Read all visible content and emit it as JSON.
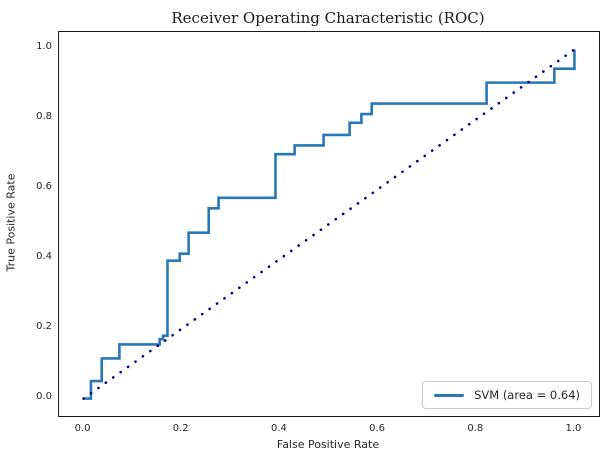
{
  "title": "Receiver Operating Characteristic (ROC)",
  "colors": {
    "roc_line": "#2878b8",
    "chance_line": "#000080",
    "spine": "#1a1a1a",
    "text": "#262626",
    "legend_border": "#cccccc"
  },
  "legend": {
    "label": "SVM (area = 0.64)"
  },
  "chart_data": {
    "type": "line",
    "title": "Receiver Operating Characteristic (ROC)",
    "xlabel": "False Positive Rate",
    "ylabel": "True Positive Rate",
    "xlim": [
      -0.05,
      1.05
    ],
    "ylim": [
      -0.05,
      1.05
    ],
    "xticks": [
      0.0,
      0.2,
      0.4,
      0.6,
      0.8,
      1.0
    ],
    "yticks": [
      0.0,
      0.2,
      0.4,
      0.6,
      0.8,
      1.0
    ],
    "grid": false,
    "auc": 0.64,
    "legend_position": "lower right",
    "series": [
      {
        "name": "SVM (area = 0.64)",
        "style": "step",
        "color": "#2878b8",
        "linewidth": 2.6,
        "x": [
          0.0,
          0.015,
          0.015,
          0.037,
          0.037,
          0.073,
          0.073,
          0.155,
          0.155,
          0.162,
          0.162,
          0.171,
          0.171,
          0.196,
          0.196,
          0.214,
          0.214,
          0.255,
          0.255,
          0.275,
          0.275,
          0.391,
          0.391,
          0.43,
          0.43,
          0.489,
          0.489,
          0.542,
          0.542,
          0.566,
          0.566,
          0.587,
          0.587,
          0.821,
          0.821,
          0.959,
          0.959,
          1.0,
          1.0
        ],
        "y": [
          0.0,
          0.0,
          0.05,
          0.05,
          0.115,
          0.115,
          0.155,
          0.155,
          0.17,
          0.17,
          0.18,
          0.18,
          0.395,
          0.395,
          0.415,
          0.415,
          0.475,
          0.475,
          0.545,
          0.545,
          0.575,
          0.575,
          0.7,
          0.7,
          0.725,
          0.725,
          0.755,
          0.755,
          0.79,
          0.79,
          0.815,
          0.815,
          0.845,
          0.845,
          0.905,
          0.905,
          0.945,
          0.945,
          1.0
        ]
      },
      {
        "name": "chance-diagonal",
        "style": "dotted",
        "color": "#000080",
        "linewidth": 2.6,
        "x": [
          0.0,
          1.0
        ],
        "y": [
          0.0,
          1.0
        ]
      }
    ]
  }
}
